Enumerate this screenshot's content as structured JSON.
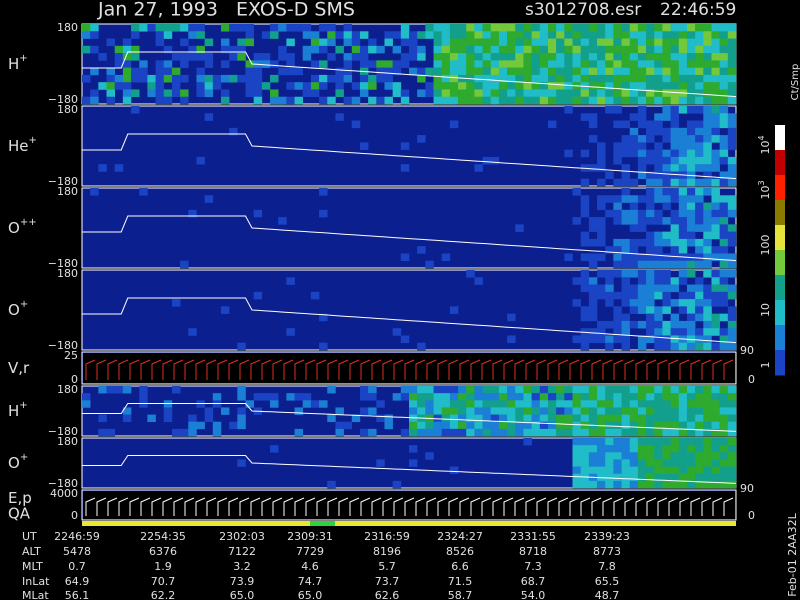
{
  "header": {
    "title": "Jan 27, 1993   EXOS-D SMS",
    "file": "s3012708.esr",
    "time": "22:46:59"
  },
  "panels": [
    {
      "name": "H",
      "charge": "+",
      "top": "180",
      "bottom": "−180"
    },
    {
      "name": "He",
      "charge": "+",
      "top": "180",
      "bottom": "−180"
    },
    {
      "name": "O",
      "charge": "++",
      "top": "180",
      "bottom": "−180"
    },
    {
      "name": "O",
      "charge": "+",
      "top": "180",
      "bottom": "−180"
    },
    {
      "name": "V,r",
      "top": "25",
      "bottom": "0",
      "right_top": "90",
      "right_bottom": "0"
    },
    {
      "name": "H",
      "charge": "+",
      "top": "180",
      "bottom": "−180"
    },
    {
      "name": "O",
      "charge": "+",
      "top": "180",
      "bottom": "−180"
    },
    {
      "name": "E,p",
      "name2": "QA",
      "top": "4000",
      "bottom": "0",
      "right_top": "90",
      "right_bottom": "0"
    }
  ],
  "colorbar": {
    "unit": "Ct/Smp",
    "labels": [
      {
        "base": "10",
        "exp": "4"
      },
      {
        "base": "10",
        "exp": "3"
      },
      "100",
      "10",
      "1"
    ]
  },
  "table": {
    "rows": [
      {
        "label": "UT",
        "values": [
          "2246:59",
          "2254:35",
          "2302:03",
          "2309:31",
          "2316:59",
          "2324:27",
          "2331:55",
          "2339:23"
        ]
      },
      {
        "label": "ALT",
        "values": [
          "5478",
          "6376",
          "7122",
          "7729",
          "8196",
          "8526",
          "8718",
          "8773"
        ]
      },
      {
        "label": "MLT",
        "values": [
          "0.7",
          "1.9",
          "3.2",
          "4.6",
          "5.7",
          "6.6",
          "7.3",
          "7.8"
        ]
      },
      {
        "label": "InLat",
        "values": [
          "64.9",
          "70.7",
          "73.9",
          "74.7",
          "73.7",
          "71.5",
          "68.7",
          "65.5"
        ]
      },
      {
        "label": "MLat",
        "values": [
          "56.1",
          "62.2",
          "65.0",
          "65.0",
          "62.6",
          "58.7",
          "54.0",
          "48.7"
        ]
      }
    ]
  },
  "footer": "Feb-01 2AA32L"
}
